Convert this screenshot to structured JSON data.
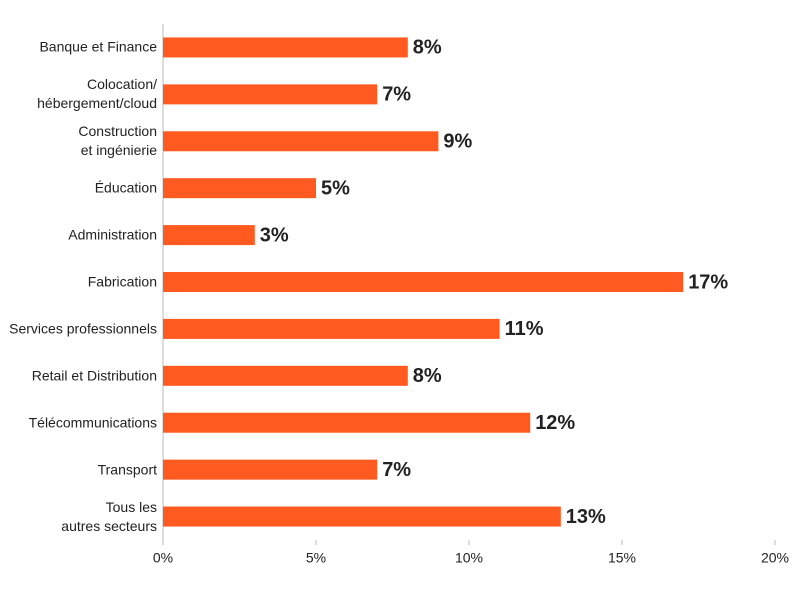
{
  "chart_data": {
    "type": "bar",
    "orientation": "horizontal",
    "categories": [
      "Banque et Finance",
      "Colocation/\nhébergement/cloud",
      "Construction\net ingénierie",
      "Éducation",
      "Administration",
      "Fabrication",
      "Services professionnels",
      "Retail et Distribution",
      "Télécommunications",
      "Transport",
      "Tous les\nautres secteurs"
    ],
    "values": [
      8,
      7,
      9,
      5,
      3,
      17,
      11,
      8,
      12,
      7,
      13
    ],
    "value_labels": [
      "8%",
      "7%",
      "9%",
      "5%",
      "3%",
      "17%",
      "11%",
      "8%",
      "12%",
      "7%",
      "13%"
    ],
    "color": "#ff5a1f",
    "xlim": [
      0,
      20
    ],
    "xticks": [
      {
        "value": 0,
        "label": "0%"
      },
      {
        "value": 5,
        "label": "5%"
      },
      {
        "value": 10,
        "label": "10%"
      },
      {
        "value": 15,
        "label": "15%"
      },
      {
        "value": 20,
        "label": "20%"
      }
    ]
  }
}
